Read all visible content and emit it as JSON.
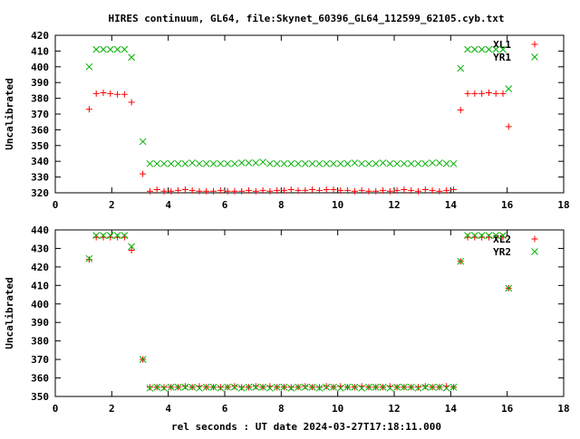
{
  "title": "HIRES continuum, GL64, file:Skynet_60396_GL64_112599_62105.cyb.txt",
  "xlabel": "rel seconds : UT date 2024-03-27T17:18:11.000",
  "chart_data": [
    {
      "type": "scatter",
      "ylabel": "Uncalibrated",
      "xlim": [
        0,
        18
      ],
      "ylim": [
        320,
        420
      ],
      "xticks": [
        0,
        2,
        4,
        6,
        8,
        10,
        12,
        14,
        16,
        18
      ],
      "yticks": [
        320,
        330,
        340,
        350,
        360,
        370,
        380,
        390,
        400,
        410,
        420
      ],
      "grid": false,
      "legend_position": "top-right",
      "series": [
        {
          "name": "XL1",
          "color": "#ff0000",
          "marker": "plus",
          "x": [
            1.2,
            1.45,
            1.7,
            1.95,
            2.2,
            2.45,
            2.7,
            3.1,
            3.35,
            3.6,
            3.85,
            4.1,
            4.35,
            4.6,
            4.85,
            5.1,
            5.35,
            5.6,
            5.85,
            6.1,
            6.35,
            6.6,
            6.85,
            7.1,
            7.35,
            7.6,
            7.85,
            8.1,
            8.35,
            8.6,
            8.85,
            9.1,
            9.35,
            9.6,
            9.85,
            10.1,
            10.35,
            10.6,
            10.85,
            11.1,
            11.35,
            11.6,
            11.85,
            12.1,
            12.35,
            12.6,
            12.85,
            13.1,
            13.35,
            13.6,
            13.85,
            14.1,
            14.35,
            14.6,
            14.85,
            15.1,
            15.35,
            15.6,
            15.85,
            16.05
          ],
          "y": [
            373,
            383,
            383.5,
            383,
            382.5,
            382.5,
            377.5,
            332,
            321,
            322,
            321,
            321,
            321.5,
            322,
            321.5,
            321,
            321,
            321,
            321.5,
            321,
            321,
            321,
            321.5,
            321,
            321.5,
            321,
            321.5,
            321.5,
            322,
            321.5,
            321.5,
            322,
            321.5,
            322,
            322,
            321.5,
            321.5,
            321,
            321.5,
            321,
            321,
            321.5,
            321,
            321.5,
            322,
            321.5,
            321,
            322,
            321.5,
            321,
            321.5,
            322,
            372.5,
            383,
            383,
            383,
            383.5,
            383,
            383,
            362
          ]
        },
        {
          "name": "YR1",
          "color": "#00b000",
          "marker": "cross",
          "x": [
            1.2,
            1.45,
            1.7,
            1.95,
            2.2,
            2.45,
            2.7,
            3.1,
            3.35,
            3.6,
            3.85,
            4.1,
            4.35,
            4.6,
            4.85,
            5.1,
            5.35,
            5.6,
            5.85,
            6.1,
            6.35,
            6.6,
            6.85,
            7.1,
            7.35,
            7.6,
            7.85,
            8.1,
            8.35,
            8.6,
            8.85,
            9.1,
            9.35,
            9.6,
            9.85,
            10.1,
            10.35,
            10.6,
            10.85,
            11.1,
            11.35,
            11.6,
            11.85,
            12.1,
            12.35,
            12.6,
            12.85,
            13.1,
            13.35,
            13.6,
            13.85,
            14.1,
            14.35,
            14.6,
            14.85,
            15.1,
            15.35,
            15.6,
            15.85,
            16.05
          ],
          "y": [
            400,
            411,
            411,
            411,
            411,
            411,
            406,
            352.5,
            338.5,
            338.5,
            338.5,
            338.5,
            338.5,
            338.5,
            339,
            338.5,
            338.5,
            338.5,
            338.5,
            338.5,
            338.5,
            339,
            339,
            339,
            339.5,
            338.5,
            338.5,
            338.5,
            338.5,
            338.5,
            338.5,
            338.5,
            338.5,
            338.5,
            338.5,
            338.5,
            338.5,
            339,
            338.5,
            338.5,
            338.5,
            339,
            338.5,
            338.5,
            338.5,
            338.5,
            338.5,
            338.5,
            339,
            339,
            338.5,
            338.5,
            399,
            411,
            411,
            411,
            411,
            411,
            411,
            386
          ]
        }
      ]
    },
    {
      "type": "scatter",
      "ylabel": "Uncalibrated",
      "xlim": [
        0,
        18
      ],
      "ylim": [
        350,
        440
      ],
      "xticks": [
        0,
        2,
        4,
        6,
        8,
        10,
        12,
        14,
        16,
        18
      ],
      "yticks": [
        350,
        360,
        370,
        380,
        390,
        400,
        410,
        420,
        430,
        440
      ],
      "grid": false,
      "legend_position": "top-right",
      "series": [
        {
          "name": "XL2",
          "color": "#ff0000",
          "marker": "plus",
          "x": [
            1.2,
            1.45,
            1.7,
            1.95,
            2.2,
            2.45,
            2.7,
            3.1,
            3.35,
            3.6,
            3.85,
            4.1,
            4.35,
            4.6,
            4.85,
            5.1,
            5.35,
            5.6,
            5.85,
            6.1,
            6.35,
            6.6,
            6.85,
            7.1,
            7.35,
            7.6,
            7.85,
            8.1,
            8.35,
            8.6,
            8.85,
            9.1,
            9.35,
            9.6,
            9.85,
            10.1,
            10.35,
            10.6,
            10.85,
            11.1,
            11.35,
            11.6,
            11.85,
            12.1,
            12.35,
            12.6,
            12.85,
            13.1,
            13.35,
            13.6,
            13.85,
            14.1,
            14.35,
            14.6,
            14.85,
            15.1,
            15.35,
            15.6,
            15.85,
            16.05
          ],
          "y": [
            424,
            436,
            436,
            436,
            436,
            436,
            429,
            370,
            355,
            355,
            355,
            355,
            355,
            355.5,
            355,
            355.5,
            355,
            355,
            355,
            355,
            355.5,
            355,
            355,
            355.5,
            355,
            355.5,
            355,
            355,
            355,
            355,
            355.5,
            355,
            355,
            355.5,
            355,
            355.5,
            355,
            355,
            355.5,
            355,
            355,
            355,
            355.5,
            355,
            355,
            355,
            355,
            355.5,
            355,
            355,
            355.5,
            355,
            423,
            436,
            436,
            436,
            436,
            436,
            436,
            408.5
          ]
        },
        {
          "name": "YR2",
          "color": "#00b000",
          "marker": "cross",
          "x": [
            1.2,
            1.45,
            1.7,
            1.95,
            2.2,
            2.45,
            2.7,
            3.1,
            3.35,
            3.6,
            3.85,
            4.1,
            4.35,
            4.6,
            4.85,
            5.1,
            5.35,
            5.6,
            5.85,
            6.1,
            6.35,
            6.6,
            6.85,
            7.1,
            7.35,
            7.6,
            7.85,
            8.1,
            8.35,
            8.6,
            8.85,
            9.1,
            9.35,
            9.6,
            9.85,
            10.1,
            10.35,
            10.6,
            10.85,
            11.1,
            11.35,
            11.6,
            11.85,
            12.1,
            12.35,
            12.6,
            12.85,
            13.1,
            13.35,
            13.6,
            13.85,
            14.1,
            14.35,
            14.6,
            14.85,
            15.1,
            15.35,
            15.6,
            15.85,
            16.05
          ],
          "y": [
            424.5,
            437,
            437,
            437,
            437,
            437,
            431,
            370,
            354.5,
            355,
            354.5,
            355,
            355,
            355,
            355,
            354.5,
            355,
            355,
            354.5,
            355,
            355,
            354.5,
            355,
            355,
            355,
            354.5,
            355,
            355,
            354.5,
            355,
            355,
            355,
            354.5,
            355,
            355,
            354.5,
            355,
            355,
            354.5,
            355,
            355,
            355,
            354.5,
            355,
            355,
            355,
            354.5,
            355,
            355,
            355,
            354.5,
            355,
            423,
            437,
            437,
            437,
            437,
            437,
            437,
            408.5
          ]
        }
      ]
    }
  ]
}
